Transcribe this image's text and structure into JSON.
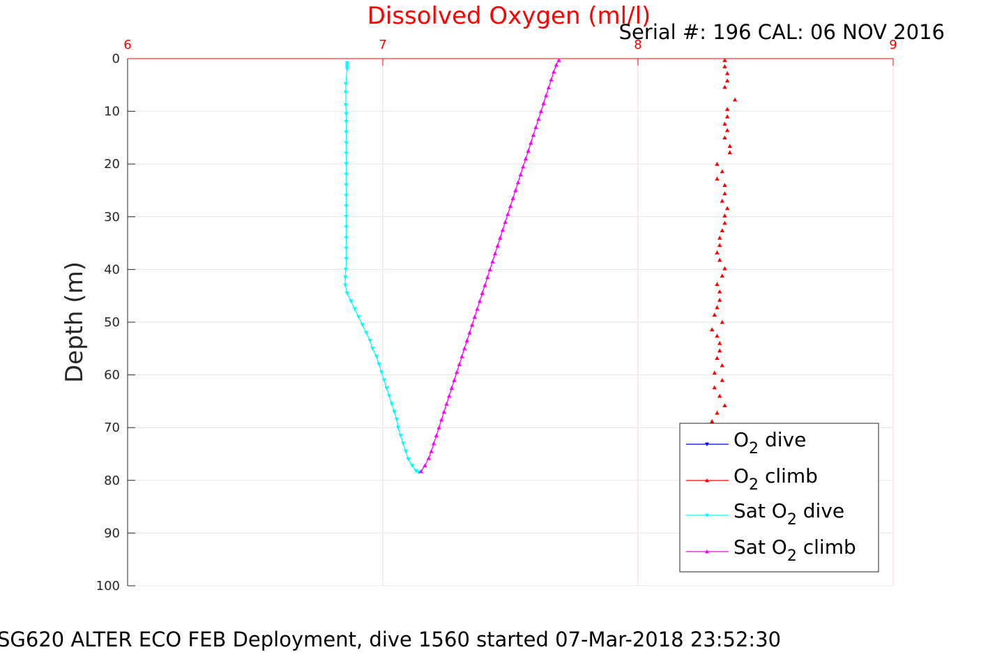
{
  "chart_data": {
    "type": "scatter",
    "title": "Dissolved Oxygen (ml/l)",
    "subtitle": "Serial #: 196  CAL: 06 NOV 2016",
    "caption": "SG620 ALTER ECO FEB Deployment, dive 1560 started 07-Mar-2018 23:52:30",
    "xlabel": "",
    "ylabel": "Depth (m)",
    "xlim": [
      6,
      9
    ],
    "ylim": [
      0,
      100
    ],
    "y_reversed": true,
    "x_axis_position": "top",
    "x_ticks": [
      "6",
      "7",
      "8",
      "9"
    ],
    "y_ticks": [
      "0",
      "10",
      "20",
      "30",
      "40",
      "50",
      "60",
      "70",
      "80",
      "90",
      "100"
    ],
    "grid": true,
    "legend_position": "bottom-right",
    "colors": {
      "title": "#ff0000",
      "x_axis": "#ff0000",
      "o2_dive": "#0000ff",
      "o2_climb": "#ff0000",
      "sat_o2_dive": "#00ffff",
      "sat_o2_climb": "#ff00ff"
    },
    "series": [
      {
        "name": "O2 dive",
        "legend_parts": [
          "O",
          "2",
          " dive"
        ],
        "color": "#0000ff",
        "marker": "triangle-down",
        "points": []
      },
      {
        "name": "O2 climb",
        "legend_parts": [
          "O",
          "2",
          " climb"
        ],
        "color": "#ff0000",
        "marker": "triangle-up",
        "points": [
          [
            8.34,
            0.3
          ],
          [
            8.34,
            1.5
          ],
          [
            8.35,
            2.8
          ],
          [
            8.35,
            4.2
          ],
          [
            8.34,
            5.4
          ],
          [
            8.38,
            7.8
          ],
          [
            8.35,
            9.6
          ],
          [
            8.35,
            11.0
          ],
          [
            8.34,
            12.4
          ],
          [
            8.35,
            13.6
          ],
          [
            8.34,
            15.0
          ],
          [
            8.36,
            16.6
          ],
          [
            8.36,
            17.8
          ],
          [
            8.31,
            20.0
          ],
          [
            8.33,
            21.4
          ],
          [
            8.31,
            22.8
          ],
          [
            8.34,
            24.0
          ],
          [
            8.34,
            25.6
          ],
          [
            8.33,
            27.0
          ],
          [
            8.35,
            28.4
          ],
          [
            8.34,
            29.8
          ],
          [
            8.34,
            31.2
          ],
          [
            8.33,
            32.6
          ],
          [
            8.32,
            34.0
          ],
          [
            8.32,
            35.4
          ],
          [
            8.31,
            36.8
          ],
          [
            8.32,
            38.2
          ],
          [
            8.34,
            39.8
          ],
          [
            8.33,
            41.2
          ],
          [
            8.31,
            42.8
          ],
          [
            8.32,
            44.2
          ],
          [
            8.32,
            45.8
          ],
          [
            8.31,
            47.2
          ],
          [
            8.3,
            48.6
          ],
          [
            8.33,
            50.0
          ],
          [
            8.29,
            51.4
          ],
          [
            8.31,
            52.6
          ],
          [
            8.32,
            54.0
          ],
          [
            8.32,
            55.4
          ],
          [
            8.31,
            56.8
          ],
          [
            8.33,
            58.2
          ],
          [
            8.3,
            59.6
          ],
          [
            8.33,
            61.0
          ],
          [
            8.3,
            62.4
          ],
          [
            8.32,
            64.0
          ],
          [
            8.34,
            65.8
          ],
          [
            8.31,
            67.2
          ],
          [
            8.29,
            68.8
          ]
        ]
      },
      {
        "name": "Sat O2 dive",
        "legend_parts": [
          "Sat O",
          "2",
          " dive"
        ],
        "color": "#00ffff",
        "marker": "triangle-down",
        "points": [
          [
            6.86,
            0.8
          ],
          [
            6.86,
            1.2
          ],
          [
            6.86,
            1.6
          ],
          [
            6.86,
            2.0
          ],
          [
            6.855,
            4.8
          ],
          [
            6.855,
            6.4
          ],
          [
            6.855,
            8.8
          ],
          [
            6.857,
            10.5
          ],
          [
            6.857,
            12.0
          ],
          [
            6.857,
            14.0
          ],
          [
            6.857,
            16.0
          ],
          [
            6.857,
            18.0
          ],
          [
            6.857,
            20.0
          ],
          [
            6.857,
            22.0
          ],
          [
            6.857,
            24.0
          ],
          [
            6.857,
            26.0
          ],
          [
            6.857,
            28.0
          ],
          [
            6.857,
            30.0
          ],
          [
            6.857,
            32.0
          ],
          [
            6.857,
            34.0
          ],
          [
            6.857,
            36.0
          ],
          [
            6.857,
            38.0
          ],
          [
            6.855,
            40.0
          ],
          [
            6.853,
            41.5
          ],
          [
            6.853,
            43.0
          ],
          [
            6.86,
            44.5
          ],
          [
            6.875,
            46.0
          ],
          [
            6.89,
            47.5
          ],
          [
            6.905,
            49.0
          ],
          [
            6.92,
            50.5
          ],
          [
            6.935,
            52.0
          ],
          [
            6.95,
            53.5
          ],
          [
            6.96,
            55.0
          ],
          [
            6.975,
            56.5
          ],
          [
            6.985,
            58.0
          ],
          [
            6.995,
            59.5
          ],
          [
            7.005,
            61.0
          ],
          [
            7.015,
            62.5
          ],
          [
            7.025,
            64.0
          ],
          [
            7.035,
            65.5
          ],
          [
            7.045,
            67.0
          ],
          [
            7.055,
            68.5
          ],
          [
            7.06,
            70.0
          ],
          [
            7.07,
            71.5
          ],
          [
            7.08,
            73.0
          ],
          [
            7.09,
            74.5
          ],
          [
            7.1,
            76.0
          ],
          [
            7.115,
            77.2
          ],
          [
            7.13,
            78.2
          ],
          [
            7.14,
            78.5
          ]
        ]
      },
      {
        "name": "Sat O2 climb",
        "legend_parts": [
          "Sat O",
          "2",
          " climb"
        ],
        "color": "#ff00ff",
        "marker": "triangle-up",
        "points": [
          [
            7.15,
            78.3
          ],
          [
            7.165,
            77.2
          ],
          [
            7.18,
            75.8
          ],
          [
            7.19,
            74.5
          ],
          [
            7.2,
            73.0
          ],
          [
            7.21,
            71.5
          ],
          [
            7.22,
            70.0
          ],
          [
            7.23,
            68.5
          ],
          [
            7.24,
            67.0
          ],
          [
            7.25,
            65.5
          ],
          [
            7.26,
            64.0
          ],
          [
            7.27,
            62.5
          ],
          [
            7.28,
            61.0
          ],
          [
            7.29,
            59.5
          ],
          [
            7.3,
            58.0
          ],
          [
            7.31,
            56.5
          ],
          [
            7.32,
            55.0
          ],
          [
            7.33,
            53.5
          ],
          [
            7.34,
            52.0
          ],
          [
            7.35,
            50.5
          ],
          [
            7.36,
            49.0
          ],
          [
            7.37,
            47.5
          ],
          [
            7.38,
            46.0
          ],
          [
            7.39,
            44.5
          ],
          [
            7.4,
            43.0
          ],
          [
            7.41,
            41.5
          ],
          [
            7.42,
            40.0
          ],
          [
            7.43,
            38.5
          ],
          [
            7.44,
            37.0
          ],
          [
            7.45,
            35.5
          ],
          [
            7.46,
            34.0
          ],
          [
            7.47,
            32.5
          ],
          [
            7.48,
            31.0
          ],
          [
            7.49,
            29.5
          ],
          [
            7.5,
            28.0
          ],
          [
            7.51,
            26.5
          ],
          [
            7.52,
            25.0
          ],
          [
            7.53,
            23.5
          ],
          [
            7.54,
            22.0
          ],
          [
            7.55,
            20.5
          ],
          [
            7.56,
            19.0
          ],
          [
            7.57,
            17.5
          ],
          [
            7.58,
            16.0
          ],
          [
            7.59,
            14.5
          ],
          [
            7.6,
            13.0
          ],
          [
            7.61,
            11.5
          ],
          [
            7.62,
            10.0
          ],
          [
            7.63,
            8.5
          ],
          [
            7.64,
            7.0
          ],
          [
            7.65,
            5.5
          ],
          [
            7.66,
            4.0
          ],
          [
            7.67,
            2.5
          ],
          [
            7.68,
            1.2
          ],
          [
            7.69,
            0.3
          ]
        ]
      }
    ]
  }
}
